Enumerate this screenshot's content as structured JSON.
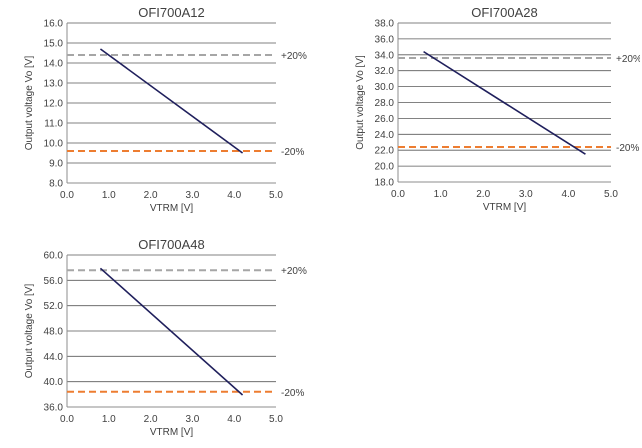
{
  "chart_data": [
    {
      "type": "line",
      "title": "OFI700A12",
      "xlabel": "VTRM [V]",
      "ylabel": "Output voltage Vo [V]",
      "xlim": [
        0,
        5
      ],
      "xstep": 1,
      "ylim": [
        8,
        16
      ],
      "ystep": 1,
      "ydecimals": 1,
      "grid": "horizontal",
      "series": [
        {
          "color": "#1f1f5c",
          "x": [
            0.8,
            4.2
          ],
          "y": [
            14.7,
            9.5
          ]
        }
      ],
      "ref_lines": [
        {
          "y": 14.4,
          "label": "+20%",
          "color": "#a6a6a6"
        },
        {
          "y": 9.6,
          "label": "-20%",
          "color": "#ed7d31"
        }
      ]
    },
    {
      "type": "line",
      "title": "OFI700A28",
      "xlabel": "VTRM [V]",
      "ylabel": "Output voltage Vo [V]",
      "xlim": [
        0,
        5
      ],
      "xstep": 1,
      "ylim": [
        18,
        38
      ],
      "ystep": 2,
      "ydecimals": 1,
      "grid": "horizontal",
      "series": [
        {
          "color": "#1f1f5c",
          "x": [
            0.6,
            4.4
          ],
          "y": [
            34.4,
            21.5
          ]
        }
      ],
      "ref_lines": [
        {
          "y": 33.6,
          "label": "+20%",
          "color": "#a6a6a6"
        },
        {
          "y": 22.4,
          "label": "-20%",
          "color": "#ed7d31"
        }
      ]
    },
    {
      "type": "line",
      "title": "OFI700A48",
      "xlabel": "VTRM [V]",
      "ylabel": "Output voltage Vo [V]",
      "xlim": [
        0,
        5
      ],
      "xstep": 1,
      "ylim": [
        36,
        60
      ],
      "ystep": 4,
      "ydecimals": 1,
      "grid": "horizontal",
      "series": [
        {
          "color": "#1f1f5c",
          "x": [
            0.8,
            4.2
          ],
          "y": [
            57.9,
            37.9
          ]
        }
      ],
      "ref_lines": [
        {
          "y": 57.6,
          "label": "+20%",
          "color": "#a6a6a6"
        },
        {
          "y": 38.4,
          "label": "-20%",
          "color": "#ed7d31"
        }
      ]
    }
  ]
}
